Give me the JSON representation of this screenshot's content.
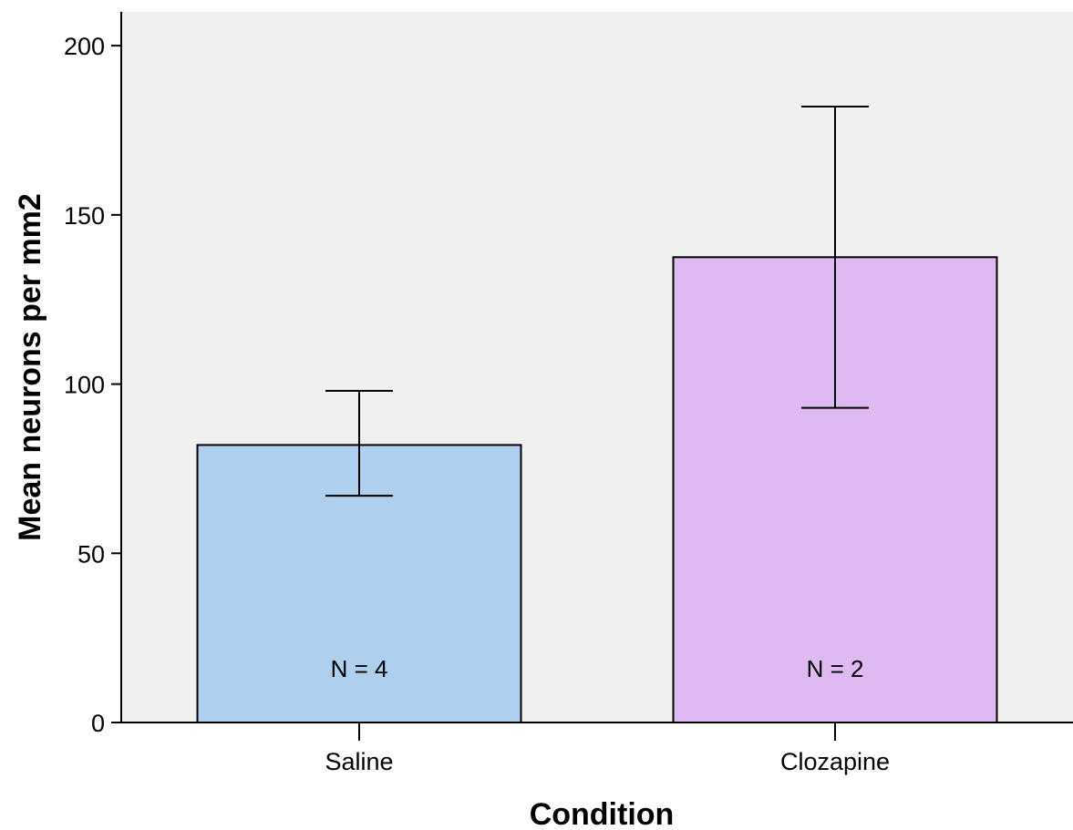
{
  "chart_data": {
    "type": "bar",
    "title": "",
    "xlabel": "Condition",
    "ylabel": "Mean neurons per mm2",
    "ylim": [
      0,
      210
    ],
    "yticks": [
      0,
      50,
      100,
      150,
      200
    ],
    "grid": false,
    "categories": [
      "Saline",
      "Clozapine"
    ],
    "values": [
      82,
      137.5
    ],
    "error_bars": [
      {
        "low": 67,
        "high": 98
      },
      {
        "low": 93,
        "high": 182
      }
    ],
    "bar_annotations": [
      "N = 4",
      "N = 2"
    ],
    "colors": [
      "#aecfee",
      "#dfb9f1"
    ],
    "plot_background": "#f0f0f0"
  }
}
